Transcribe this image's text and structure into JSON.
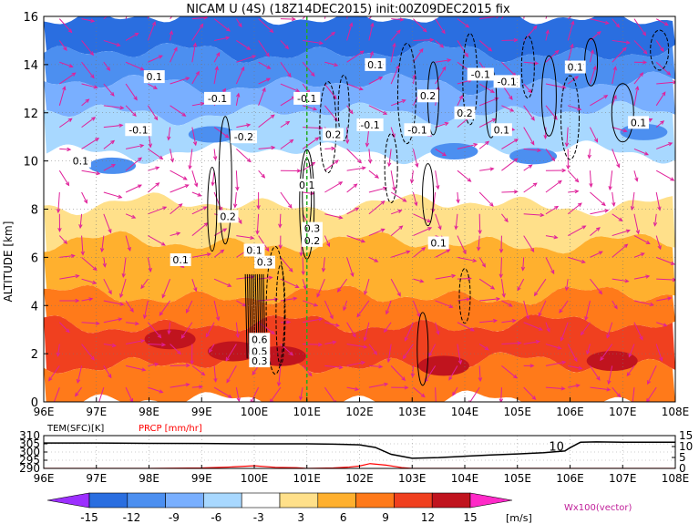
{
  "title": "NICAM U (4S) (18Z14DEC2015) init:00Z09DEC2015 fix",
  "chart_data": [
    {
      "type": "heatmap",
      "subtype": "vertical-cross-section (shaded zonal wind, contours, vectors)",
      "ylabel": "ALTITUDE [km]",
      "x_ticks": [
        "96E",
        "97E",
        "98E",
        "99E",
        "100E",
        "101E",
        "102E",
        "103E",
        "104E",
        "105E",
        "106E",
        "107E",
        "108E"
      ],
      "x_range": [
        96,
        108
      ],
      "y_ticks": [
        "0",
        "2",
        "4",
        "6",
        "8",
        "10",
        "12",
        "14",
        "16"
      ],
      "y_range": [
        0,
        16
      ],
      "grid": true,
      "marker_line_lon": 101,
      "contour_labels": [
        "0.1",
        "-0.1",
        "-0.1",
        "0.1",
        "-0.2",
        "-0.1",
        "0.1",
        "0.2",
        "-0.1",
        "-0.1",
        "0.1",
        "-0.1",
        "-0.1",
        "0.2",
        "0.1",
        "0.1",
        "0.2",
        "0.1",
        "0.3",
        "0.2",
        "0.1",
        "0.1",
        "0.2",
        "0.3",
        "0.1",
        "0.6",
        "0.5",
        "0.3"
      ],
      "bands": [
        {
          "ymin": 14.5,
          "ymax": 16,
          "value": -15
        },
        {
          "ymin": 13.2,
          "ymax": 14.5,
          "value": -12
        },
        {
          "ymin": 12,
          "ymax": 13.2,
          "value": -9
        },
        {
          "ymin": 10.4,
          "ymax": 12,
          "value": -6
        },
        {
          "ymin": 9.6,
          "ymax": 10.4,
          "value": -3
        },
        {
          "ymin": 8.2,
          "ymax": 9.6,
          "value": 0
        },
        {
          "ymin": 6.6,
          "ymax": 8.2,
          "value": 3
        },
        {
          "ymin": 4.4,
          "ymax": 6.6,
          "value": 6
        },
        {
          "ymin": 3.2,
          "ymax": 4.4,
          "value": 9
        },
        {
          "ymin": 1.6,
          "ymax": 3.2,
          "value": 12
        },
        {
          "ymin": 0,
          "ymax": 1.6,
          "value": 9
        }
      ]
    },
    {
      "type": "line",
      "legend": [
        "TEM(SFC)[K]",
        "PRCP [mm/hr]"
      ],
      "left_ticks": [
        "310",
        "305",
        "300",
        "295",
        "290"
      ],
      "left_range": [
        290,
        310
      ],
      "right_ticks": [
        "15",
        "10",
        "5",
        "0"
      ],
      "right_range": [
        0,
        15
      ],
      "x_ticks": [
        "96E",
        "97E",
        "98E",
        "99E",
        "100E",
        "101E",
        "102E",
        "103E",
        "104E",
        "105E",
        "106E",
        "107E",
        "108E"
      ],
      "inline_label": "10",
      "series": [
        {
          "name": "TEM(SFC)[K]",
          "color": "#000000",
          "x": [
            96,
            97,
            98,
            99,
            100,
            101,
            101.5,
            102,
            102.3,
            102.6,
            103,
            103.5,
            104,
            104.5,
            105,
            105.5,
            105.9,
            106,
            106.2,
            106.5,
            107,
            107.5,
            108
          ],
          "values": [
            305.5,
            305.5,
            305.3,
            305.2,
            305.0,
            305.0,
            304.8,
            304.4,
            302.8,
            298.6,
            296.2,
            296.6,
            297.4,
            298.2,
            298.8,
            299.6,
            300.6,
            302.6,
            306.0,
            306.2,
            306.0,
            306.0,
            306.0
          ]
        },
        {
          "name": "PRCP [mm/hr]",
          "color": "#ff0000",
          "x": [
            96,
            98,
            99,
            99.5,
            100,
            100.4,
            100.8,
            101,
            101.5,
            101.8,
            102,
            102.2,
            102.5,
            102.8,
            103,
            103.5,
            104,
            105,
            106,
            107,
            108
          ],
          "values": [
            0,
            0,
            0.2,
            0.6,
            1.2,
            0.5,
            0.3,
            0,
            0.2,
            0.6,
            1.1,
            2.2,
            1.5,
            0.4,
            0,
            0,
            0,
            0,
            0,
            0,
            0
          ]
        }
      ]
    }
  ],
  "colorbar": {
    "ticks": [
      "-15",
      "-12",
      "-9",
      "-6",
      "-3",
      "3",
      "6",
      "9",
      "12",
      "15"
    ],
    "unit": "[m/s]",
    "colors": [
      "#9c2fff",
      "#2a6ee0",
      "#4c8ff0",
      "#79afff",
      "#a8d8ff",
      "#ffffff",
      "#ffe08a",
      "#ffb02e",
      "#ff7a1a",
      "#f0401f",
      "#c0141e",
      "#ff2ac8"
    ]
  },
  "vector_label": "Wx100(vector)"
}
